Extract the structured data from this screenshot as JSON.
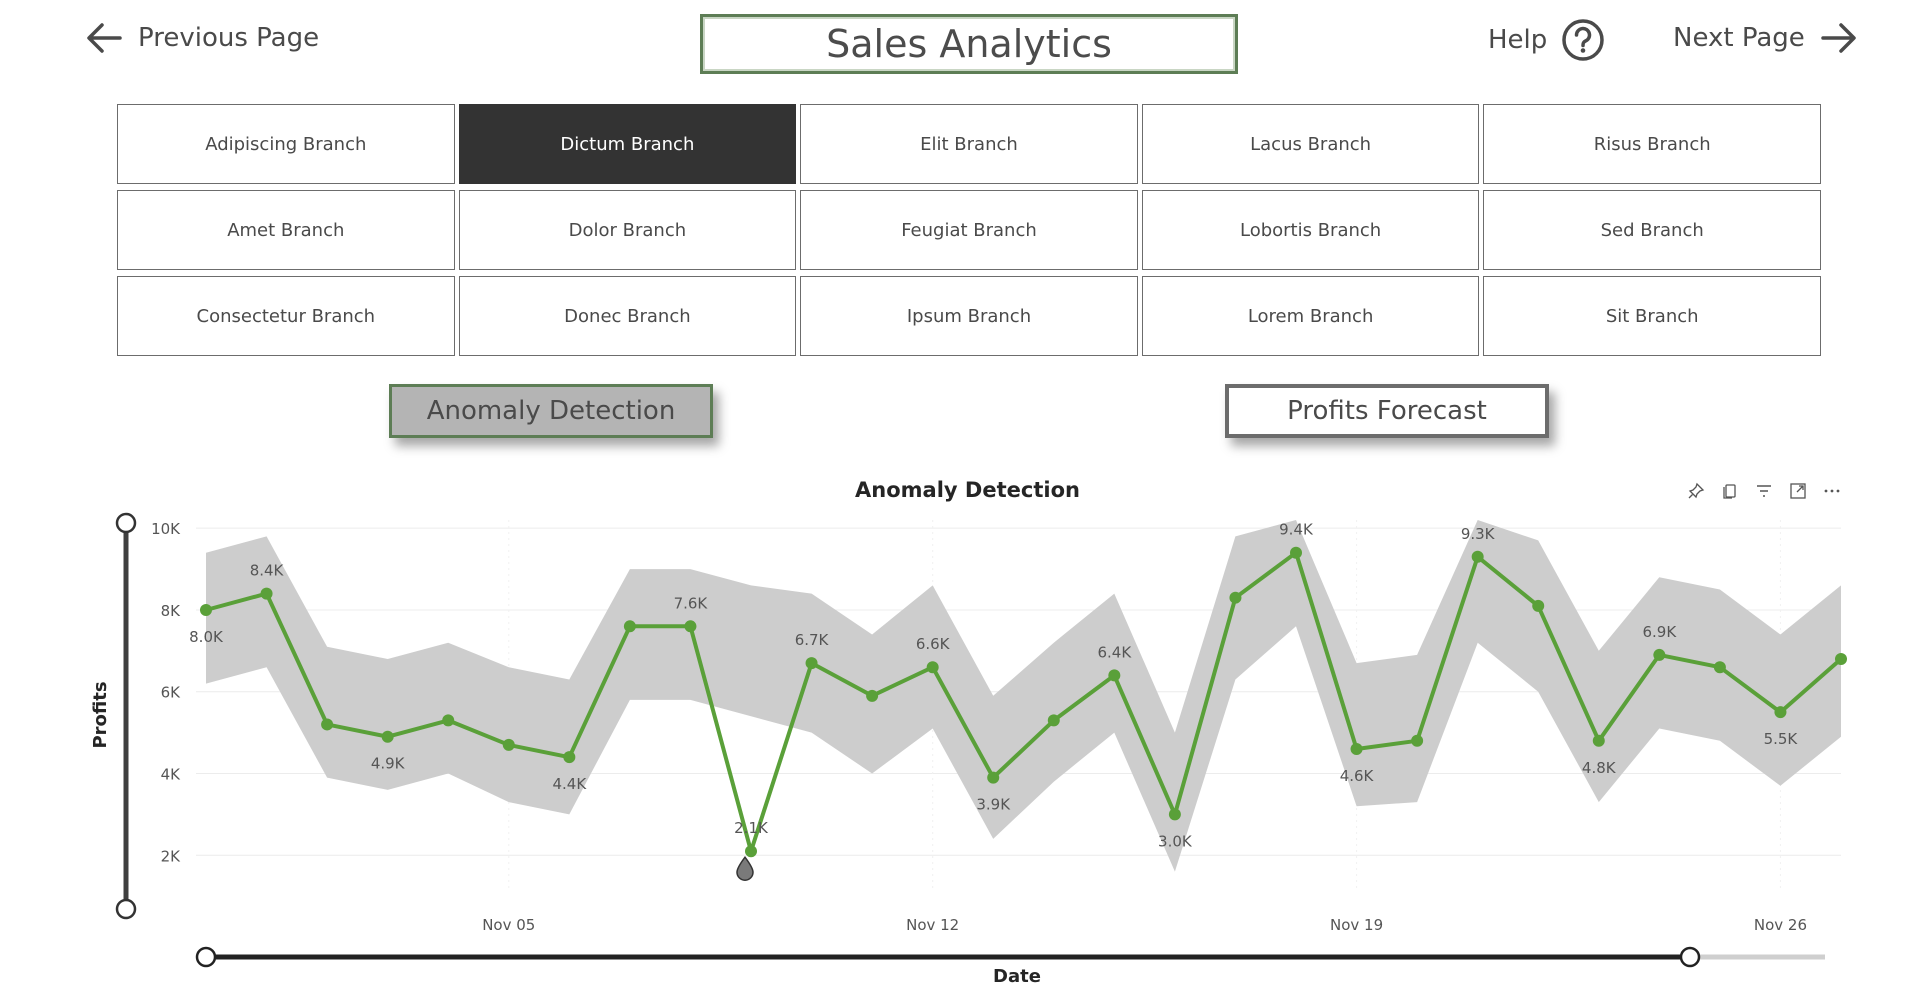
{
  "header": {
    "prev_label": "Previous Page",
    "title": "Sales Analytics",
    "help_label": "Help",
    "next_label": "Next Page"
  },
  "branches": [
    [
      "Adipiscing Branch",
      "Dictum Branch",
      "Elit Branch",
      "Lacus Branch",
      "Risus Branch"
    ],
    [
      "Amet Branch",
      "Dolor Branch",
      "Feugiat Branch",
      "Lobortis Branch",
      "Sed Branch"
    ],
    [
      "Consectetur Branch",
      "Donec Branch",
      "Ipsum Branch",
      "Lorem Branch",
      "Sit Branch"
    ]
  ],
  "selected_branch": "Dictum Branch",
  "tabs": {
    "anomaly": "Anomaly Detection",
    "forecast": "Profits Forecast"
  },
  "colors": {
    "line": "#5aa039",
    "band": "#cdcdcd",
    "anomaly": "#7a7a7a",
    "selected": "#333333"
  },
  "chart_data": {
    "type": "line",
    "title": "Anomaly Detection",
    "xlabel": "Date",
    "ylabel": "Profits",
    "x_ticks": [
      "Nov 05",
      "Nov 12",
      "Nov 19",
      "Nov 26"
    ],
    "y_ticks": [
      "2K",
      "4K",
      "6K",
      "8K",
      "10K"
    ],
    "ylim": [
      1200,
      10200
    ],
    "x": [
      "Oct 31",
      "Nov 01",
      "Nov 02",
      "Nov 03",
      "Nov 04",
      "Nov 05",
      "Nov 06",
      "Nov 07",
      "Nov 08",
      "Nov 09",
      "Nov 10",
      "Nov 11",
      "Nov 12",
      "Nov 13",
      "Nov 14",
      "Nov 15",
      "Nov 16",
      "Nov 17",
      "Nov 18",
      "Nov 19",
      "Nov 20",
      "Nov 21",
      "Nov 22",
      "Nov 23",
      "Nov 24",
      "Nov 25",
      "Nov 26",
      "Nov 27"
    ],
    "series": [
      {
        "values": [
          8000,
          8400,
          5200,
          4900,
          5300,
          4700,
          4400,
          7600,
          7600,
          2100,
          6700,
          5900,
          6600,
          3900,
          5300,
          6400,
          3000,
          8300,
          9400,
          4600,
          4800,
          9300,
          8100,
          4800,
          6900,
          6600,
          5500,
          6800
        ]
      }
    ],
    "band_upper": [
      9400,
      9800,
      7100,
      6800,
      7200,
      6600,
      6300,
      9000,
      9000,
      8600,
      8400,
      7400,
      8600,
      5900,
      7200,
      8400,
      5000,
      9800,
      10400,
      6700,
      6900,
      10300,
      9700,
      7000,
      8800,
      8500,
      7400,
      8600
    ],
    "band_lower": [
      6200,
      6600,
      3900,
      3600,
      4000,
      3300,
      3000,
      5800,
      5800,
      5400,
      5000,
      4000,
      5100,
      2400,
      3800,
      5000,
      1600,
      6300,
      7600,
      3200,
      3300,
      7200,
      6000,
      3300,
      5100,
      4800,
      3700,
      4900
    ],
    "data_labels": [
      {
        "index": 0,
        "text": "8.0K",
        "pos": "below"
      },
      {
        "index": 1,
        "text": "8.4K",
        "pos": "above"
      },
      {
        "index": 3,
        "text": "4.9K",
        "pos": "below"
      },
      {
        "index": 6,
        "text": "4.4K",
        "pos": "below"
      },
      {
        "index": 8,
        "text": "7.6K",
        "pos": "above"
      },
      {
        "index": 9,
        "text": "2.1K",
        "pos": "above"
      },
      {
        "index": 10,
        "text": "6.7K",
        "pos": "above"
      },
      {
        "index": 12,
        "text": "6.6K",
        "pos": "above"
      },
      {
        "index": 13,
        "text": "3.9K",
        "pos": "below"
      },
      {
        "index": 15,
        "text": "6.4K",
        "pos": "above"
      },
      {
        "index": 16,
        "text": "3.0K",
        "pos": "below"
      },
      {
        "index": 18,
        "text": "9.4K",
        "pos": "above"
      },
      {
        "index": 19,
        "text": "4.6K",
        "pos": "below"
      },
      {
        "index": 21,
        "text": "9.3K",
        "pos": "above"
      },
      {
        "index": 23,
        "text": "4.8K",
        "pos": "below"
      },
      {
        "index": 24,
        "text": "6.9K",
        "pos": "above"
      },
      {
        "index": 26,
        "text": "5.5K",
        "pos": "below"
      }
    ],
    "anomaly_index": 9,
    "grid": true
  }
}
